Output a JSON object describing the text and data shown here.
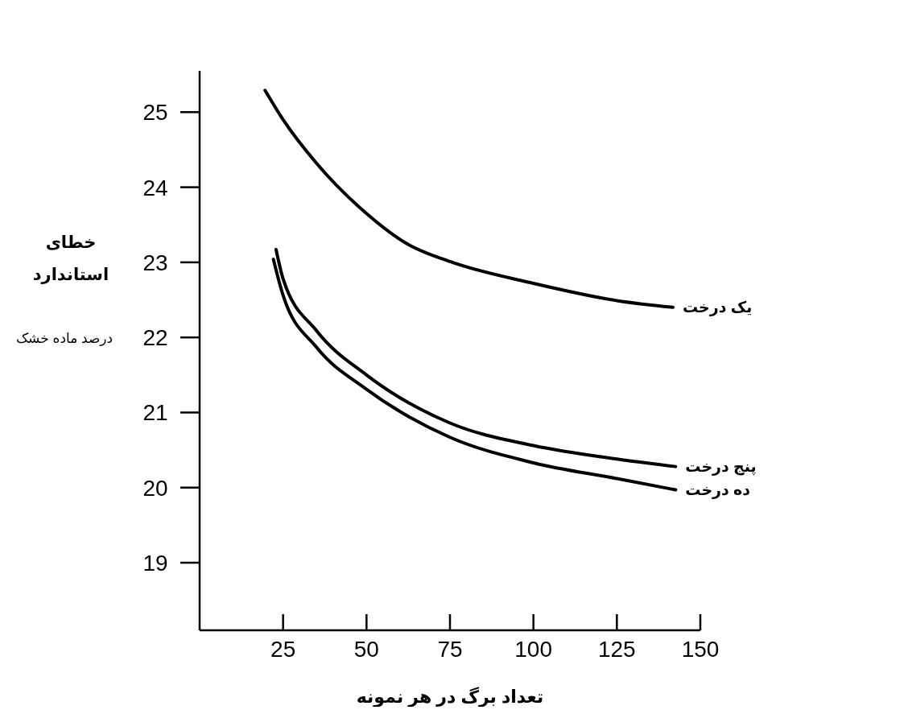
{
  "chart_data": {
    "type": "line",
    "xlabel": "تعداد برگ در هر نمونه",
    "ylabel": "خطای استاندارد",
    "annotations": [
      "درصد ماده خشک"
    ],
    "xlim": [
      0,
      150
    ],
    "ylim": [
      18.1,
      25.55
    ],
    "xticks": [
      25,
      50,
      75,
      100,
      125,
      150
    ],
    "yticks": [
      19,
      20,
      21,
      22,
      23,
      24,
      25
    ],
    "grid": false,
    "marker": "none",
    "line_style": "solid",
    "series": [
      {
        "name": "یک درخت",
        "color": "#000000",
        "x": [
          19.6,
          25,
          35,
          50,
          62,
          75,
          100,
          125,
          141.8
        ],
        "values": [
          25.29,
          24.9,
          24.32,
          23.65,
          23.25,
          23.01,
          22.72,
          22.49,
          22.4
        ]
      },
      {
        "name": "پنج درخت",
        "color": "#000000",
        "x": [
          22.9,
          25,
          35,
          50,
          75,
          100,
          125,
          142.6
        ],
        "values": [
          23.17,
          22.78,
          22.09,
          21.5,
          20.86,
          20.56,
          20.38,
          20.28
        ]
      },
      {
        "name": "ده درخت",
        "color": "#000000",
        "x": [
          22.1,
          25,
          35,
          50,
          75,
          100,
          125,
          142.6
        ],
        "values": [
          23.04,
          22.56,
          21.87,
          21.31,
          20.67,
          20.33,
          20.12,
          19.97
        ]
      }
    ]
  }
}
